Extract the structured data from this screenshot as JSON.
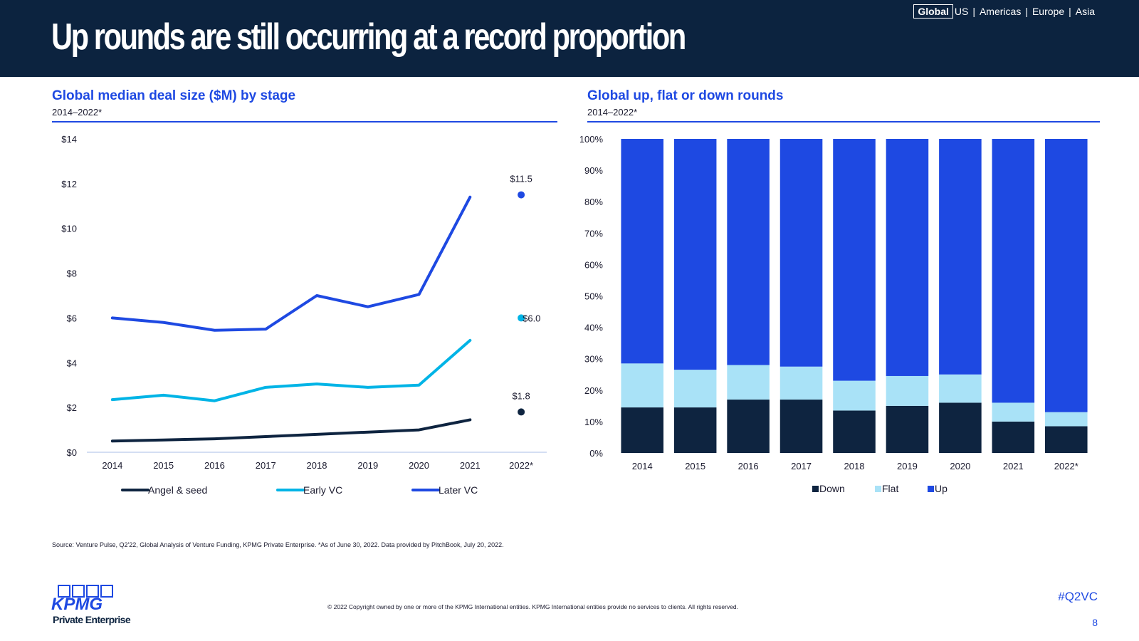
{
  "header": {
    "title": "Up rounds are still occurring at a record proportion",
    "nav": {
      "active": "Global",
      "links": [
        "US",
        "Americas",
        "Europe",
        "Asia"
      ]
    }
  },
  "colors": {
    "navy": "#0c233f",
    "blue": "#1e49e2",
    "cyan": "#00b4e6",
    "light_blue": "#a9e2f7",
    "dark": "#0e2440"
  },
  "chart_data": [
    {
      "type": "line",
      "title": "Global median deal size ($M) by stage",
      "subtitle": "2014–2022*",
      "categories": [
        "2014",
        "2015",
        "2016",
        "2017",
        "2018",
        "2019",
        "2020",
        "2021",
        "2022*"
      ],
      "yticks": [
        "$0",
        "$2",
        "$4",
        "$6",
        "$8",
        "$10",
        "$12",
        "$14"
      ],
      "ylim": [
        0,
        14
      ],
      "series": [
        {
          "name": "Angel & seed",
          "color": "#0e2440",
          "values": [
            0.5,
            0.55,
            0.6,
            0.7,
            0.8,
            0.9,
            1.0,
            1.45,
            1.8
          ]
        },
        {
          "name": "Early VC",
          "color": "#00b4e6",
          "values": [
            2.35,
            2.55,
            2.3,
            2.9,
            3.05,
            2.9,
            3.0,
            5.0,
            6.0
          ]
        },
        {
          "name": "Later VC",
          "color": "#1e49e2",
          "values": [
            6.0,
            5.8,
            5.45,
            5.5,
            7.0,
            6.5,
            7.05,
            11.4,
            11.5
          ]
        }
      ],
      "data_labels": [
        {
          "series": "Later VC",
          "category": "2022*",
          "text": "$11.5"
        },
        {
          "series": "Early VC",
          "category": "2022*",
          "text": "$6.0"
        },
        {
          "series": "Angel & seed",
          "category": "2022*",
          "text": "$1.8"
        }
      ],
      "legend": "bottom"
    },
    {
      "type": "bar",
      "stacked": true,
      "title": "Global up, flat or down rounds",
      "subtitle": "2014–2022*",
      "categories": [
        "2014",
        "2015",
        "2016",
        "2017",
        "2018",
        "2019",
        "2020",
        "2021",
        "2022*"
      ],
      "yticks": [
        "0%",
        "10%",
        "20%",
        "30%",
        "40%",
        "50%",
        "60%",
        "70%",
        "80%",
        "90%",
        "100%"
      ],
      "ylim": [
        0,
        100
      ],
      "series": [
        {
          "name": "Down",
          "color": "#0e2440",
          "values": [
            14.5,
            14.5,
            17.0,
            17.0,
            13.5,
            15.0,
            16.0,
            10.0,
            8.5
          ]
        },
        {
          "name": "Flat",
          "color": "#a9e2f7",
          "values": [
            14.0,
            12.0,
            11.0,
            10.5,
            9.5,
            9.5,
            9.0,
            6.0,
            4.5
          ]
        },
        {
          "name": "Up",
          "color": "#1e49e2",
          "values": [
            71.5,
            73.5,
            72.0,
            72.5,
            77.0,
            75.5,
            75.0,
            84.0,
            87.0
          ]
        }
      ],
      "legend": "bottom"
    }
  ],
  "footer": {
    "source": "Source: Venture Pulse, Q2'22, Global Analysis of Venture Funding, KPMG Private Enterprise. *As of June 30, 2022. Data provided by PitchBook, July 20, 2022.",
    "copyright": "© 2022 Copyright owned by one or more of the KPMG International entities. KPMG International entities provide no services to clients. All rights reserved.",
    "hashtag": "#Q2VC",
    "page_number": "8",
    "logo_text": "KPMG",
    "logo_sub": "Private Enterprise"
  }
}
